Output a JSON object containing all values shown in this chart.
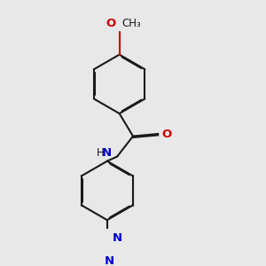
{
  "bg_color": "#e8e8e8",
  "bond_color": "#1a1a1a",
  "nitrogen_color": "#0000cc",
  "oxygen_color": "#cc0000",
  "line_width": 1.5,
  "dbl_sep": 0.018,
  "font_size": 8.5,
  "fig_size": [
    3.0,
    3.0
  ],
  "dpi": 100,
  "xlim": [
    -1.0,
    1.6
  ],
  "ylim": [
    -3.2,
    1.8
  ]
}
